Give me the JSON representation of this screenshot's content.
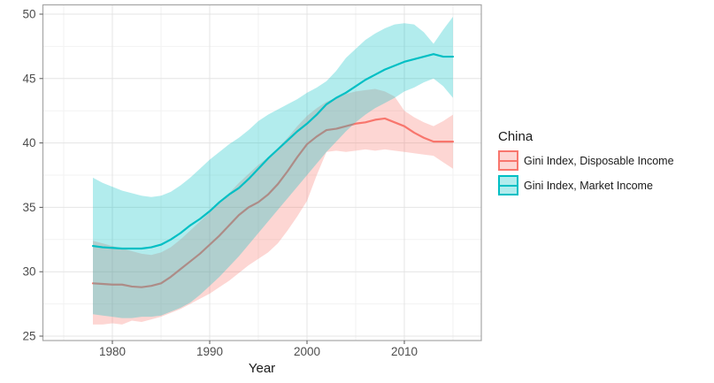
{
  "figure": {
    "background": "#ffffff"
  },
  "axes": {
    "xlabel": "Year",
    "x_ticks": [
      1980,
      1990,
      2000,
      2010
    ],
    "x_minor_ticks": [
      1975,
      1985,
      1995,
      2005,
      2015
    ],
    "y_ticks": [
      25,
      30,
      35,
      40,
      45,
      50
    ],
    "y_minor_ticks": [
      27.5,
      32.5,
      37.5,
      42.5,
      47.5
    ],
    "grid": "on",
    "tick_label_color": "#4d4d4d",
    "major_grid_color": "#e4e4e4",
    "minor_grid_color": "#f2f2f2",
    "panel_border_color": "#a6a6a6",
    "tick_mark_color": "#555555"
  },
  "legend": {
    "position": "right",
    "title": "China",
    "entries": [
      {
        "label": "Gini Index, Disposable Income",
        "color": "#F8766D",
        "fill": "rgba(248,118,109,0.3)"
      },
      {
        "label": "Gini Index, Market Income",
        "color": "#00BFC4",
        "fill": "rgba(0,191,196,0.3)"
      }
    ]
  },
  "chart_data": {
    "type": "line",
    "title": "",
    "xlabel": "Year",
    "ylabel": "",
    "xlim": [
      1972.8,
      2017.9
    ],
    "ylim": [
      24.7,
      50.7
    ],
    "x": [
      1978,
      1979,
      1980,
      1981,
      1982,
      1983,
      1984,
      1985,
      1986,
      1987,
      1988,
      1989,
      1990,
      1991,
      1992,
      1993,
      1994,
      1995,
      1996,
      1997,
      1998,
      1999,
      2000,
      2001,
      2002,
      2003,
      2004,
      2005,
      2006,
      2007,
      2008,
      2009,
      2010,
      2011,
      2012,
      2013,
      2014,
      2015
    ],
    "series": [
      {
        "name": "Gini Index, Disposable Income",
        "color": "#F8766D",
        "band_fill": "rgba(248,118,109,0.3)",
        "values": [
          29.1,
          29.05,
          29.0,
          29.0,
          28.85,
          28.8,
          28.9,
          29.1,
          29.6,
          30.2,
          30.8,
          31.4,
          32.1,
          32.8,
          33.6,
          34.4,
          35.0,
          35.4,
          36.0,
          36.8,
          37.8,
          38.9,
          39.9,
          40.5,
          41.0,
          41.1,
          41.3,
          41.5,
          41.6,
          41.8,
          41.9,
          41.6,
          41.3,
          40.8,
          40.4,
          40.1,
          40.1,
          40.1
        ],
        "upper": [
          32.4,
          32.2,
          32.0,
          31.8,
          31.6,
          31.4,
          31.3,
          31.5,
          31.9,
          32.5,
          33.2,
          33.9,
          34.6,
          35.3,
          36.1,
          36.9,
          37.6,
          38.3,
          38.9,
          39.6,
          40.4,
          41.3,
          42.1,
          42.7,
          43.2,
          43.5,
          43.8,
          44.0,
          44.1,
          44.2,
          44.0,
          43.6,
          42.5,
          42.0,
          41.6,
          41.3,
          41.7,
          42.2
        ],
        "lower": [
          25.9,
          25.9,
          26.0,
          25.9,
          26.2,
          26.1,
          26.3,
          26.5,
          26.8,
          27.1,
          27.5,
          27.9,
          28.3,
          28.8,
          29.3,
          29.9,
          30.5,
          31.0,
          31.5,
          32.2,
          33.2,
          34.3,
          35.5,
          37.5,
          39.3,
          39.4,
          39.3,
          39.4,
          39.5,
          39.4,
          39.5,
          39.4,
          39.3,
          39.2,
          39.1,
          39.0,
          38.5,
          38.0
        ]
      },
      {
        "name": "Gini Index, Market Income",
        "color": "#00BFC4",
        "band_fill": "rgba(0,191,196,0.3)",
        "values": [
          32.0,
          31.9,
          31.85,
          31.8,
          31.8,
          31.8,
          31.9,
          32.1,
          32.5,
          33.0,
          33.6,
          34.1,
          34.7,
          35.4,
          36.0,
          36.5,
          37.2,
          38.0,
          38.8,
          39.5,
          40.2,
          40.9,
          41.5,
          42.2,
          43.0,
          43.5,
          43.9,
          44.4,
          44.9,
          45.3,
          45.7,
          46.0,
          46.3,
          46.5,
          46.7,
          46.9,
          46.7,
          46.7
        ],
        "upper": [
          37.3,
          36.9,
          36.6,
          36.3,
          36.1,
          35.9,
          35.8,
          35.9,
          36.2,
          36.7,
          37.3,
          38.0,
          38.7,
          39.3,
          39.9,
          40.4,
          41.0,
          41.7,
          42.2,
          42.6,
          43.0,
          43.4,
          43.9,
          44.3,
          44.8,
          45.6,
          46.6,
          47.3,
          48.0,
          48.5,
          48.9,
          49.2,
          49.3,
          49.2,
          48.6,
          47.7,
          48.8,
          49.8
        ],
        "lower": [
          26.7,
          26.6,
          26.5,
          26.4,
          26.4,
          26.5,
          26.5,
          26.6,
          26.9,
          27.2,
          27.6,
          28.2,
          28.9,
          29.6,
          30.4,
          31.2,
          32.1,
          33.0,
          33.9,
          34.8,
          35.7,
          36.6,
          37.5,
          38.4,
          39.3,
          40.1,
          40.9,
          41.6,
          42.2,
          42.7,
          43.1,
          43.5,
          44.0,
          44.3,
          44.7,
          45.0,
          44.4,
          43.5
        ]
      }
    ]
  }
}
